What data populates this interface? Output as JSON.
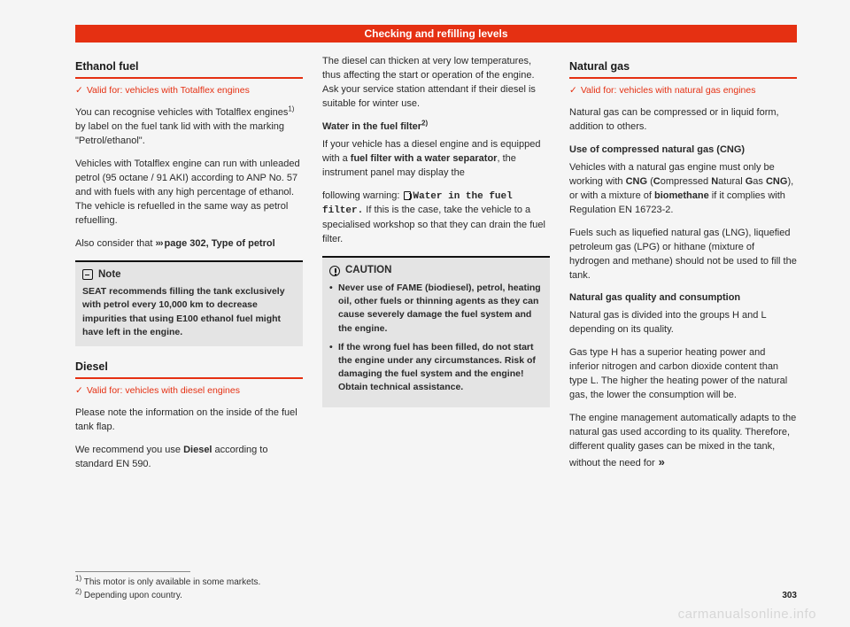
{
  "banner": {
    "title": "Checking and refilling levels"
  },
  "col1": {
    "ethanol": {
      "title": "Ethanol fuel",
      "valid": "Valid for: vehicles with Totalflex engines",
      "p1a": "You can recognise vehicles with Totalflex engines",
      "p1b": " by label on the fuel tank lid with with the marking \"Petrol/ethanol\".",
      "p2": "Vehicles with Totalflex engine can run with unleaded petrol (95 octane / 91 AKI) according to ANP No. 57 and with fuels with any high percentage of ethanol. The vehicle is refuelled in the same way as petrol refuelling.",
      "p3a": "Also consider that ",
      "p3b": "page 302, Type of petrol",
      "note_label": "Note",
      "note_body": "SEAT recommends filling the tank exclusively with petrol every 10,000 km to decrease impurities that using E100 ethanol fuel might have left in the engine."
    },
    "diesel": {
      "title": "Diesel",
      "valid": "Valid for: vehicles with diesel engines",
      "p1": "Please note the information on the inside of the fuel tank flap.",
      "p2a": "We recommend you use ",
      "p2b": "Diesel",
      "p2c": " according to standard EN 590."
    }
  },
  "col2": {
    "p1": "The diesel can thicken at very low temperatures, thus affecting the start or operation of the engine. Ask your service station attendant if their diesel is suitable for winter use.",
    "water_head_a": "Water in the fuel filter",
    "p2a": "If your vehicle has a diesel engine and is equipped with a ",
    "p2b": "fuel filter with a water separator",
    "p2c": ", the instrument panel may display the",
    "p3a": "following warning: ",
    "p3mono": "Water in the fuel filter.",
    "p3b": " If this is the case, take the vehicle to a specialised workshop so that they can drain the fuel filter.",
    "caution_label": "CAUTION",
    "caution_li1": "Never use of FAME (biodiesel), petrol, heating oil, other fuels or thinning agents as they can cause severely damage the fuel system and the engine.",
    "caution_li2": "If the wrong fuel has been filled, do not start the engine under any circumstances. Risk of damaging the fuel system and the engine! Obtain technical assistance."
  },
  "col3": {
    "title": "Natural gas",
    "valid": "Valid for: vehicles with natural gas engines",
    "p1": "Natural gas can be compressed or in liquid form, addition to others.",
    "h1": "Use of compressed natural gas (CNG)",
    "p2a": "Vehicles with a natural gas engine must only be working with ",
    "p2b": "CNG",
    "p2c": " (",
    "p2d": "C",
    "p2e": "ompressed ",
    "p2f": "N",
    "p2g": "atural ",
    "p2h": "G",
    "p2i": "as ",
    "p2j": "CNG",
    "p2k": "), or with a mixture of ",
    "p2l": "biomethane",
    "p2m": " if it complies with Regulation EN 16723-2.",
    "p3": "Fuels such as liquefied natural gas (LNG), liquefied petroleum gas (LPG) or hithane (mixture of hydrogen and methane) should not be used to fill the tank.",
    "h2": "Natural gas quality and consumption",
    "p4": "Natural gas is divided into the groups H and L depending on its quality.",
    "p5": "Gas type H has a superior heating power and inferior nitrogen and carbon dioxide content than type L. The higher the heating power of the natural gas, the lower the consumption will be.",
    "p6": "The engine management automatically adapts to the natural gas used according to its quality. Therefore, different quality gases can be mixed in the tank, without the need for",
    "cont": "»"
  },
  "footnotes": {
    "f1": "This motor is only available in some markets.",
    "f2": "Depending upon country."
  },
  "page_num": "303",
  "watermark": "carmanualsonline.info",
  "tick": "✓",
  "sup1": "1)",
  "sup2": "2)"
}
